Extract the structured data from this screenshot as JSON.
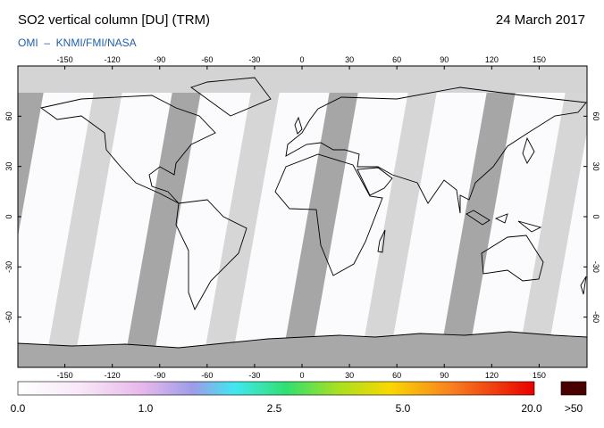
{
  "header": {
    "title": "SO2 vertical column [DU] (TRM)",
    "date": "24 March 2017",
    "subtitle": "OMI  –  KNMI/FMI/NASA"
  },
  "map": {
    "lon_ticks": [
      -150,
      -120,
      -90,
      -60,
      -30,
      0,
      30,
      60,
      90,
      120,
      150
    ],
    "lat_ticks": [
      -60,
      -30,
      0,
      30,
      60
    ]
  },
  "colorbar": {
    "labels": [
      "0.0",
      "1.0",
      "2.5",
      "5.0",
      "20.0"
    ],
    "overflow_label": ">50"
  }
}
